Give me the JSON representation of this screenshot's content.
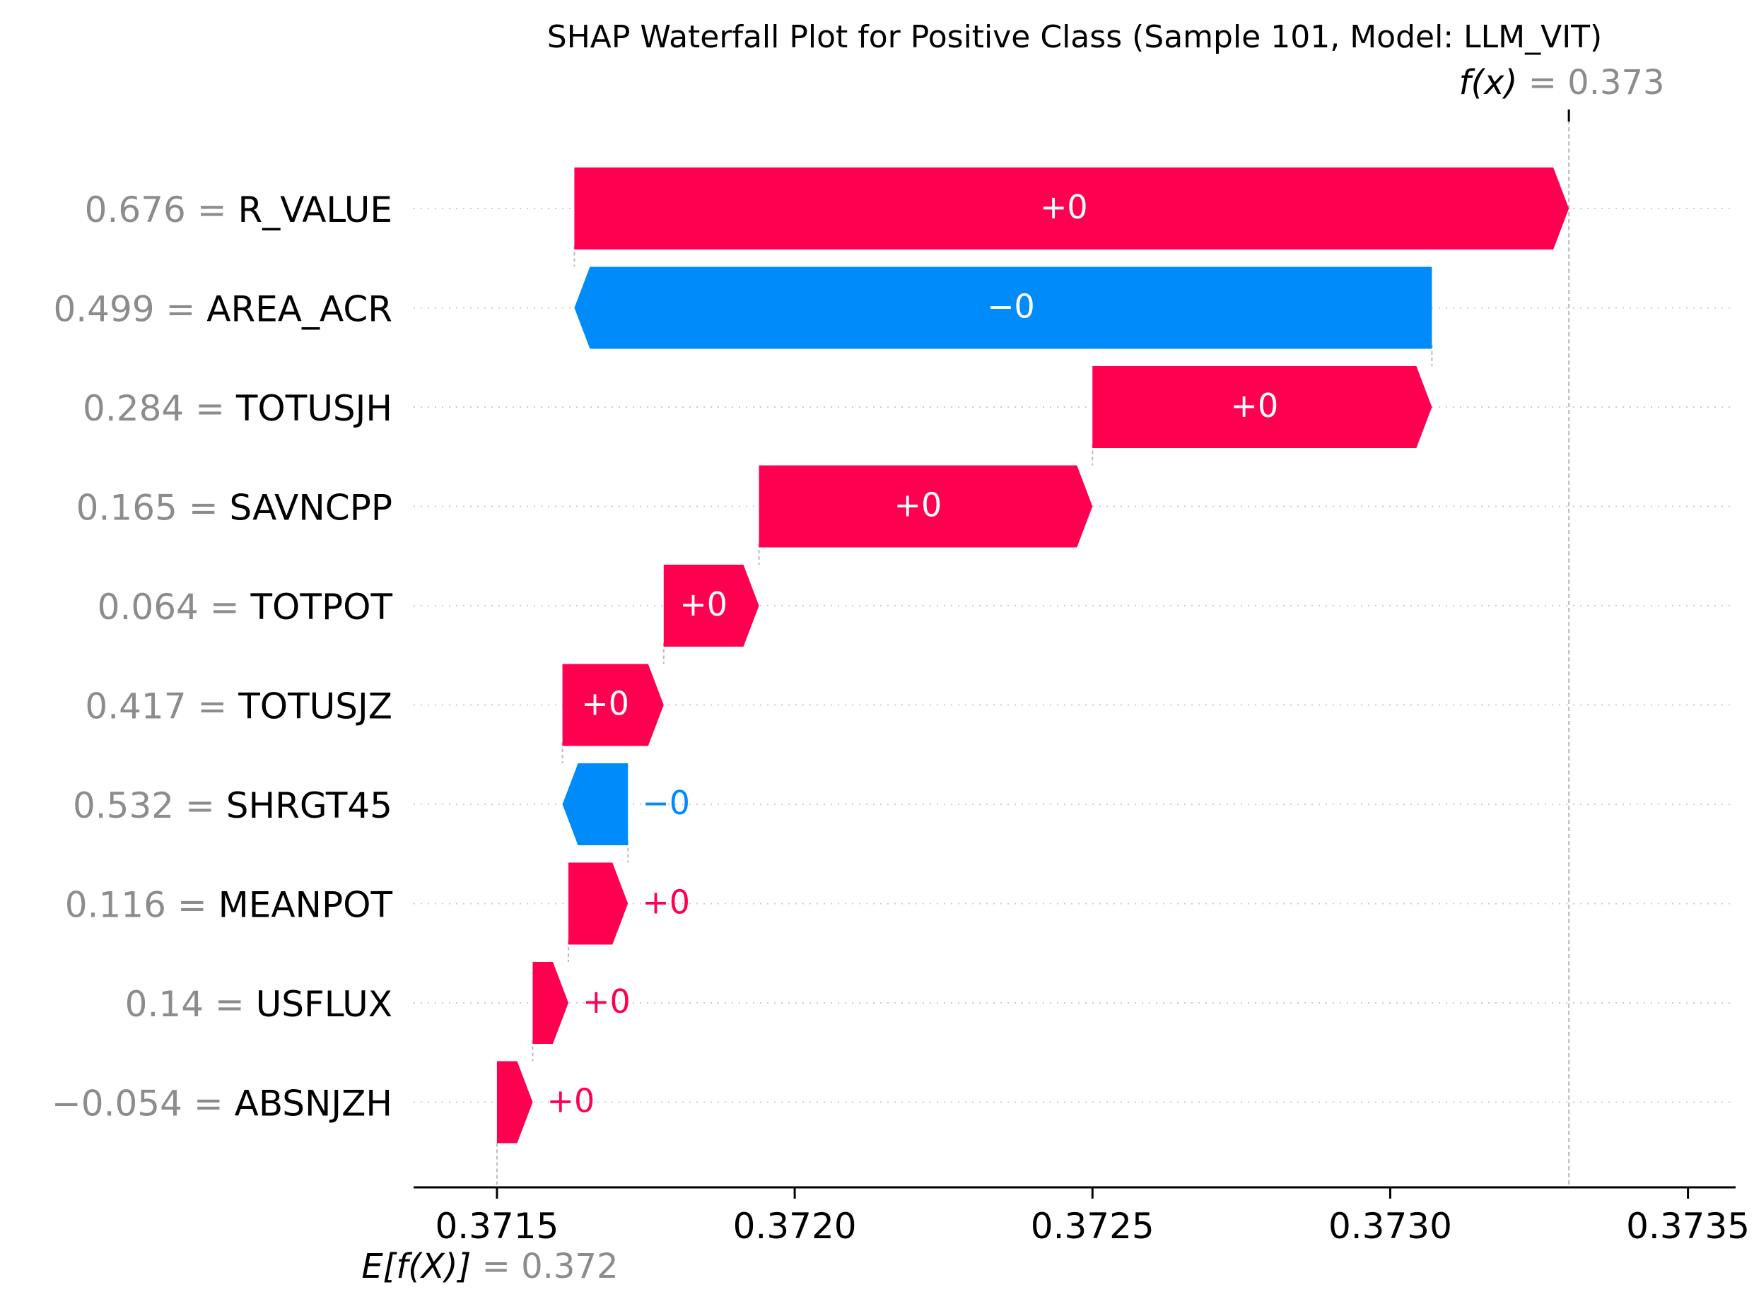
{
  "chart_data": {
    "type": "waterfall",
    "title": "SHAP Waterfall Plot for Positive Class (Sample 101, Model: LLM_VIT)",
    "fx": {
      "label": "f(x)",
      "value_text": "0.373",
      "value": 0.3733
    },
    "efx": {
      "label": "E[f(X)]",
      "value_text": "0.372",
      "value": 0.3715
    },
    "xlim": [
      0.37136,
      0.37358
    ],
    "xticks": [
      {
        "value": 0.3715,
        "label": "0.3715"
      },
      {
        "value": 0.372,
        "label": "0.3720"
      },
      {
        "value": 0.3725,
        "label": "0.3725"
      },
      {
        "value": 0.373,
        "label": "0.3730"
      },
      {
        "value": 0.3735,
        "label": "0.3735"
      }
    ],
    "features": [
      {
        "value": "0.676",
        "name": "R_VALUE",
        "start": 0.37163,
        "end": 0.3733,
        "label": "+0"
      },
      {
        "value": "0.499",
        "name": "AREA_ACR",
        "start": 0.37307,
        "end": 0.37163,
        "label": "−0"
      },
      {
        "value": "0.284",
        "name": "TOTUSJH",
        "start": 0.3725,
        "end": 0.37307,
        "label": "+0"
      },
      {
        "value": "0.165",
        "name": "SAVNCPP",
        "start": 0.37194,
        "end": 0.3725,
        "label": "+0"
      },
      {
        "value": "0.064",
        "name": "TOTPOT",
        "start": 0.37178,
        "end": 0.37194,
        "label": "+0"
      },
      {
        "value": "0.417",
        "name": "TOTUSJZ",
        "start": 0.37161,
        "end": 0.37178,
        "label": "+0"
      },
      {
        "value": "0.532",
        "name": "SHRGT45",
        "start": 0.37172,
        "end": 0.37161,
        "label": "−0"
      },
      {
        "value": "0.116",
        "name": "MEANPOT",
        "start": 0.37162,
        "end": 0.37172,
        "label": "+0"
      },
      {
        "value": "0.14",
        "name": "USFLUX",
        "start": 0.37156,
        "end": 0.37162,
        "label": "+0"
      },
      {
        "value": "−0.054",
        "name": "ABSNJZH",
        "start": 0.3715,
        "end": 0.37156,
        "label": "+0"
      }
    ],
    "colors": {
      "positive": "#ff0051",
      "negative": "#008bfb",
      "value_text": "#8c8c8c",
      "guide": "#bbbbbb"
    },
    "grid": false,
    "legend": "none"
  }
}
